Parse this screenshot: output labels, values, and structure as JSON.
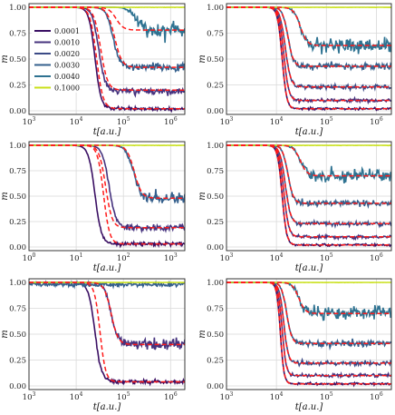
{
  "figure": {
    "layout": "3x2 grid",
    "background": "#ffffff"
  },
  "legend": {
    "panel": 0,
    "placement": "upper-left",
    "entries": [
      {
        "label": "0.0001",
        "color": "#3a0f63"
      },
      {
        "label": "0.0010",
        "color": "#46337e"
      },
      {
        "label": "0.0020",
        "color": "#3b4a86"
      },
      {
        "label": "0.0030",
        "color": "#35608d"
      },
      {
        "label": "0.0040",
        "color": "#2e7291"
      },
      {
        "label": "0.1000",
        "color": "#c9e01a"
      }
    ]
  },
  "colors": {
    "fit_line": "#ff1a1a",
    "grid": "#d9d9d9",
    "frame": "#222222"
  },
  "chart_data": [
    {
      "type": "line",
      "xscale": "log",
      "xlim": [
        1000,
        2000000
      ],
      "ylim": [
        0,
        1
      ],
      "xlabel": "t[a.u.]",
      "ylabel": "m",
      "grid": true,
      "xticklabels": [
        "10^3",
        "10^4",
        "10^5",
        "10^6"
      ],
      "yticklabels": [
        "0.00",
        "0.25",
        "0.50",
        "0.75",
        "1.00"
      ],
      "series": [
        {
          "color": "#3a0f63",
          "t50": 25000,
          "w": 0.14,
          "m_inf": 0.02,
          "noise": 0.008
        },
        {
          "color": "#46337e",
          "t50": 30000,
          "w": 0.15,
          "m_inf": 0.19,
          "noise": 0.015
        },
        {
          "color": "#35608d",
          "t50": 60000,
          "w": 0.16,
          "m_inf": 0.42,
          "noise": 0.02
        },
        {
          "color": "#2e7291",
          "t50": 180000,
          "w": 0.17,
          "m_inf": 0.78,
          "noise": 0.04
        },
        {
          "color": "#c9e01a",
          "t50": 0,
          "w": 0.1,
          "m_inf": 1.0,
          "noise": 0.001
        }
      ],
      "fits": [
        {
          "t50": 27000,
          "w": 0.15,
          "m_inf": 0.02
        },
        {
          "t50": 33000,
          "w": 0.16,
          "m_inf": 0.2
        },
        {
          "t50": 65000,
          "w": 0.17,
          "m_inf": 0.42
        },
        {
          "t50": 70000,
          "w": 0.17,
          "m_inf": 0.78
        }
      ]
    },
    {
      "type": "line",
      "xscale": "log",
      "xlim": [
        1000,
        2000000
      ],
      "ylim": [
        0,
        1
      ],
      "xlabel": "t[a.u.]",
      "ylabel": "m",
      "grid": true,
      "xticklabels": [
        "10^3",
        "10^4",
        "10^5",
        "10^6"
      ],
      "yticklabels": [
        "0.00",
        "0.25",
        "0.50",
        "0.75",
        "1.00"
      ],
      "series": [
        {
          "color": "#3a0f63",
          "t50": 13000,
          "w": 0.1,
          "m_inf": 0.02,
          "noise": 0.005
        },
        {
          "color": "#46337e",
          "t50": 14000,
          "w": 0.11,
          "m_inf": 0.1,
          "noise": 0.008
        },
        {
          "color": "#3b4a86",
          "t50": 15000,
          "w": 0.12,
          "m_inf": 0.23,
          "noise": 0.01
        },
        {
          "color": "#35608d",
          "t50": 17000,
          "w": 0.12,
          "m_inf": 0.43,
          "noise": 0.015
        },
        {
          "color": "#2e7291",
          "t50": 30000,
          "w": 0.15,
          "m_inf": 0.63,
          "noise": 0.035
        },
        {
          "color": "#c9e01a",
          "t50": 0,
          "w": 0.1,
          "m_inf": 1.0,
          "noise": 0.001
        }
      ],
      "fits": [
        {
          "t50": 13000,
          "w": 0.1,
          "m_inf": 0.02
        },
        {
          "t50": 14000,
          "w": 0.11,
          "m_inf": 0.1
        },
        {
          "t50": 15000,
          "w": 0.12,
          "m_inf": 0.23
        },
        {
          "t50": 17000,
          "w": 0.12,
          "m_inf": 0.43
        },
        {
          "t50": 30000,
          "w": 0.15,
          "m_inf": 0.63
        }
      ]
    },
    {
      "type": "line",
      "xscale": "log",
      "xlim": [
        1,
        2000
      ],
      "ylim": [
        0,
        1
      ],
      "xlabel": "t[a.u.]",
      "ylabel": "m",
      "grid": true,
      "xticklabels": [
        "10^0",
        "10^1",
        "10^2",
        "10^3"
      ],
      "yticklabels": [
        "0.00",
        "0.25",
        "0.50",
        "0.75",
        "1.00"
      ],
      "series": [
        {
          "color": "#3a0f63",
          "t50": 25,
          "w": 0.15,
          "m_inf": 0.03,
          "noise": 0.008
        },
        {
          "color": "#46337e",
          "t50": 50,
          "w": 0.16,
          "m_inf": 0.19,
          "noise": 0.015
        },
        {
          "color": "#35608d",
          "t50": 160,
          "w": 0.17,
          "m_inf": 0.48,
          "noise": 0.025
        },
        {
          "color": "#c9e01a",
          "t50": 0,
          "w": 0.1,
          "m_inf": 1.0,
          "noise": 0.001
        }
      ],
      "fits": [
        {
          "t50": 38,
          "w": 0.14,
          "m_inf": 0.03
        },
        {
          "t50": 42,
          "w": 0.15,
          "m_inf": 0.19
        },
        {
          "t50": 170,
          "w": 0.17,
          "m_inf": 0.48
        }
      ]
    },
    {
      "type": "line",
      "xscale": "log",
      "xlim": [
        1000,
        2000000
      ],
      "ylim": [
        0,
        1
      ],
      "xlabel": "t[a.u.]",
      "ylabel": "m",
      "grid": true,
      "xticklabels": [
        "10^3",
        "10^4",
        "10^5",
        "10^6"
      ],
      "yticklabels": [
        "0.00",
        "0.25",
        "0.50",
        "0.75",
        "1.00"
      ],
      "series": [
        {
          "color": "#3a0f63",
          "t50": 13000,
          "w": 0.1,
          "m_inf": 0.02,
          "noise": 0.005
        },
        {
          "color": "#46337e",
          "t50": 14000,
          "w": 0.11,
          "m_inf": 0.1,
          "noise": 0.008
        },
        {
          "color": "#3b4a86",
          "t50": 15000,
          "w": 0.12,
          "m_inf": 0.23,
          "noise": 0.01
        },
        {
          "color": "#35608d",
          "t50": 17000,
          "w": 0.12,
          "m_inf": 0.43,
          "noise": 0.015
        },
        {
          "color": "#2e7291",
          "t50": 30000,
          "w": 0.15,
          "m_inf": 0.7,
          "noise": 0.03
        },
        {
          "color": "#c9e01a",
          "t50": 0,
          "w": 0.1,
          "m_inf": 1.0,
          "noise": 0.001
        }
      ],
      "fits": [
        {
          "t50": 13000,
          "w": 0.1,
          "m_inf": 0.02
        },
        {
          "t50": 14000,
          "w": 0.11,
          "m_inf": 0.1
        },
        {
          "t50": 15000,
          "w": 0.12,
          "m_inf": 0.23
        },
        {
          "t50": 17000,
          "w": 0.12,
          "m_inf": 0.43
        },
        {
          "t50": 30000,
          "w": 0.15,
          "m_inf": 0.7
        }
      ]
    },
    {
      "type": "line",
      "xscale": "log",
      "xlim": [
        1000,
        2000000
      ],
      "ylim": [
        0,
        1
      ],
      "xlabel": "t[a.u.]",
      "ylabel": "m",
      "grid": true,
      "xticklabels": [
        "10^3",
        "10^4",
        "10^5",
        "10^6"
      ],
      "yticklabels": [
        "0.00",
        "0.25",
        "0.50",
        "0.75",
        "1.00"
      ],
      "series": [
        {
          "color": "#3a0f63",
          "t50": 25000,
          "w": 0.15,
          "m_inf": 0.04,
          "noise": 0.01
        },
        {
          "color": "#46337e",
          "t50": 55000,
          "w": 0.16,
          "m_inf": 0.4,
          "noise": 0.025
        },
        {
          "color": "#35608d",
          "t50": 0,
          "w": 0.1,
          "m_inf": 0.98,
          "noise": 0.01
        },
        {
          "color": "#c9e01a",
          "t50": 0,
          "w": 0.1,
          "m_inf": 1.0,
          "noise": 0.001
        }
      ],
      "fits": [
        {
          "t50": 32000,
          "w": 0.13,
          "m_inf": 0.04
        },
        {
          "t50": 55000,
          "w": 0.16,
          "m_inf": 0.4
        }
      ]
    },
    {
      "type": "line",
      "xscale": "log",
      "xlim": [
        1000,
        2000000
      ],
      "ylim": [
        0,
        1
      ],
      "xlabel": "t[a.u.]",
      "ylabel": "m",
      "grid": true,
      "xticklabels": [
        "10^3",
        "10^4",
        "10^5",
        "10^6"
      ],
      "yticklabels": [
        "0.00",
        "0.25",
        "0.50",
        "0.75",
        "1.00"
      ],
      "series": [
        {
          "color": "#3a0f63",
          "t50": 12000,
          "w": 0.08,
          "m_inf": 0.02,
          "noise": 0.005
        },
        {
          "color": "#46337e",
          "t50": 13000,
          "w": 0.09,
          "m_inf": 0.1,
          "noise": 0.008
        },
        {
          "color": "#3b4a86",
          "t50": 14000,
          "w": 0.1,
          "m_inf": 0.22,
          "noise": 0.01
        },
        {
          "color": "#35608d",
          "t50": 16000,
          "w": 0.11,
          "m_inf": 0.41,
          "noise": 0.015
        },
        {
          "color": "#2e7291",
          "t50": 28000,
          "w": 0.14,
          "m_inf": 0.7,
          "noise": 0.03
        },
        {
          "color": "#c9e01a",
          "t50": 0,
          "w": 0.1,
          "m_inf": 1.0,
          "noise": 0.001
        }
      ],
      "fits": [
        {
          "t50": 12000,
          "w": 0.08,
          "m_inf": 0.02
        },
        {
          "t50": 13000,
          "w": 0.09,
          "m_inf": 0.1
        },
        {
          "t50": 14000,
          "w": 0.1,
          "m_inf": 0.22
        },
        {
          "t50": 16000,
          "w": 0.11,
          "m_inf": 0.41
        },
        {
          "t50": 28000,
          "w": 0.14,
          "m_inf": 0.7
        }
      ]
    }
  ]
}
